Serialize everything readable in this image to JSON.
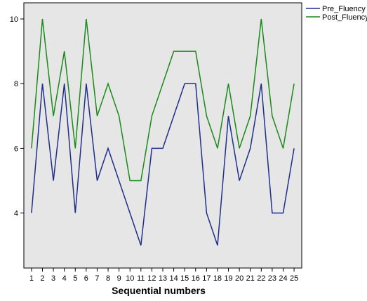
{
  "chart_data": {
    "type": "line",
    "xlabel": "Sequential numbers",
    "ylabel": "",
    "x": [
      1,
      2,
      3,
      4,
      5,
      6,
      7,
      8,
      9,
      10,
      11,
      12,
      13,
      14,
      15,
      16,
      17,
      18,
      19,
      20,
      21,
      22,
      23,
      24,
      25
    ],
    "xlim": [
      0.3,
      25.7
    ],
    "ylim": [
      2.3,
      10.5
    ],
    "yticks": [
      4,
      6,
      8,
      10
    ],
    "grid": false,
    "legend_position": "top-right",
    "plot_background": "#e6e6e6",
    "series": [
      {
        "name": "Pre_Fluency",
        "color": "#1f2f8a",
        "values": [
          4,
          8,
          5,
          8,
          4,
          8,
          5,
          6,
          5,
          4,
          3,
          6,
          6,
          7,
          8,
          8,
          4,
          3,
          7,
          5,
          6,
          8,
          4,
          4,
          6
        ]
      },
      {
        "name": "Post_Fluency",
        "color": "#1a8a1a",
        "values": [
          6,
          10,
          7,
          9,
          6,
          10,
          7,
          8,
          7,
          5,
          5,
          7,
          8,
          9,
          9,
          9,
          7,
          6,
          8,
          6,
          7,
          10,
          7,
          6,
          8
        ]
      }
    ]
  }
}
